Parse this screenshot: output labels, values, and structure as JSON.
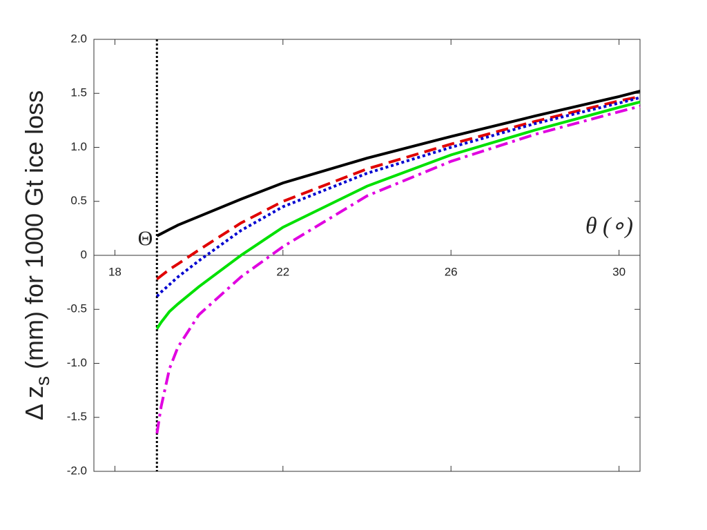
{
  "chart_data": {
    "type": "line",
    "ylabel": {
      "main": "Δ z",
      "sub": "s",
      "rest": "(mm) for 1000 Gt ice loss"
    },
    "xlabel": "θ (∘)",
    "vline": {
      "x": 19,
      "label": "Θ"
    },
    "xlim": [
      17.5,
      30.5
    ],
    "xticks": [
      18,
      22,
      26,
      30
    ],
    "ylim": [
      -2,
      2
    ],
    "yticks": [
      {
        "value": -2,
        "label": "-2.0"
      },
      {
        "value": -1.5,
        "label": "-1.5"
      },
      {
        "value": -1,
        "label": "-1.0"
      },
      {
        "value": -0.5,
        "label": "-0.5"
      },
      0,
      {
        "value": 0.5,
        "label": "0.5"
      },
      {
        "value": 1,
        "label": "1.0"
      },
      {
        "value": 1.5,
        "label": "1.5"
      },
      {
        "value": 2,
        "label": "2.0"
      }
    ],
    "x": [
      19,
      19.1,
      19.3,
      19.5,
      20,
      21,
      22,
      24,
      26,
      28,
      30,
      30.5
    ],
    "series": [
      {
        "color": "#000000",
        "style": "solid",
        "values": [
          0.18,
          0.2,
          0.24,
          0.28,
          0.36,
          0.52,
          0.67,
          0.9,
          1.1,
          1.29,
          1.47,
          1.52
        ]
      },
      {
        "color": "#e00000",
        "style": "dashed",
        "values": [
          -0.22,
          -0.19,
          -0.13,
          -0.08,
          0.05,
          0.3,
          0.5,
          0.8,
          1.03,
          1.24,
          1.43,
          1.47
        ]
      },
      {
        "color": "#0000d0",
        "style": "dotted",
        "values": [
          -0.38,
          -0.34,
          -0.27,
          -0.2,
          -0.05,
          0.23,
          0.45,
          0.76,
          1.0,
          1.22,
          1.41,
          1.46
        ]
      },
      {
        "color": "#00e000",
        "style": "solid",
        "values": [
          -0.68,
          -0.62,
          -0.52,
          -0.45,
          -0.29,
          0.0,
          0.26,
          0.64,
          0.93,
          1.16,
          1.37,
          1.42
        ]
      },
      {
        "color": "#e000e0",
        "style": "dashdot",
        "values": [
          -1.65,
          -1.4,
          -1.05,
          -0.85,
          -0.55,
          -0.2,
          0.08,
          0.55,
          0.87,
          1.12,
          1.33,
          1.38
        ]
      }
    ]
  }
}
